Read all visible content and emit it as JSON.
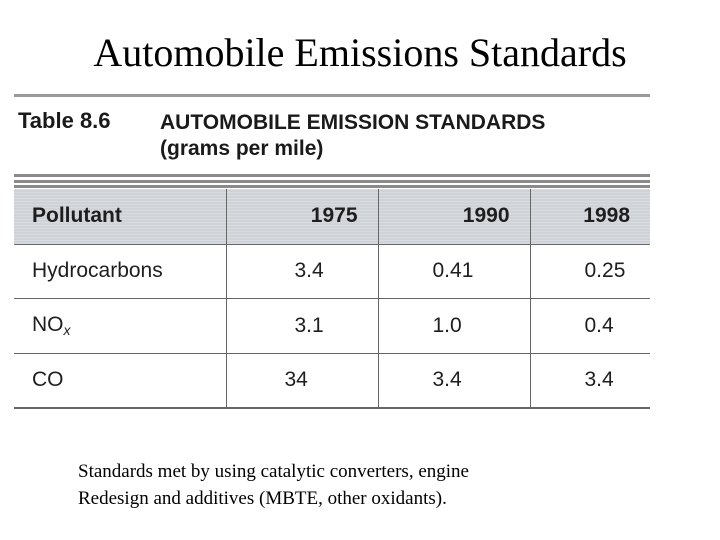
{
  "slide": {
    "title": "Automobile Emissions Standards"
  },
  "table": {
    "caption_number": "Table 8.6",
    "caption_line1": "AUTOMOBILE EMISSION STANDARDS",
    "caption_line2": "(grams per mile)",
    "headers": [
      "Pollutant",
      "1975",
      "1990",
      "1998"
    ],
    "rows": [
      {
        "pollutant": "Hydrocarbons",
        "pollutant_sub": "",
        "v1975": "3.4",
        "v1990": "0.41",
        "v1998": "0.25"
      },
      {
        "pollutant": "NO",
        "pollutant_sub": "x",
        "v1975": "3.1",
        "v1990": "1.0",
        "v1998": "0.4"
      },
      {
        "pollutant": "CO",
        "pollutant_sub": "",
        "v1975": "34",
        "v1990": "3.4",
        "v1998": "3.4"
      }
    ]
  },
  "footnote": {
    "line1": "Standards met by using catalytic converters, engine",
    "line2": "Redesign and additives (MBTE, other oxidants)."
  }
}
